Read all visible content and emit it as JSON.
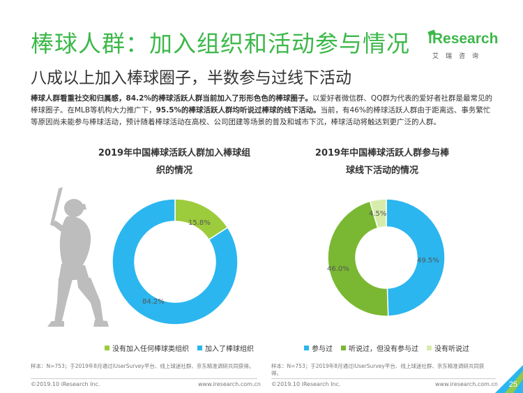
{
  "header": {
    "title": "棒球人群：加入组织和活动参与情况",
    "subtitle": "八成以上加入棒球圈子，半数参与过线下活动"
  },
  "logo": {
    "main_prefix": "i",
    "main_text": "Research",
    "sub_text": "艾瑞咨询",
    "icon": "iresearch-logo-icon"
  },
  "description": {
    "part1_bold": "棒球人群看重社交和归属感，84.2%的棒球活跃人群当前加入了形形色色的棒球圈子。",
    "part2": "以爱好者微信群、QQ群为代表的爱好者社群是最常见的棒球圈子。在MLB等机构大力推广下，",
    "part3_bold": "95.5%的棒球活跃人群均听说过棒球的线下活动。",
    "part4": "当前，有46%的棒球活跃人群由于距离远、事务繁忙等原因尚未能参与棒球活动，预计随着棒球活动在高校、公司团建等场景的普及和城市下沉，棒球活动将触达到更广泛的人群。"
  },
  "decor": {
    "icon": "baseball-player-silhouette-icon"
  },
  "chart_data": [
    {
      "type": "pie",
      "title_line1": "2019年中国棒球活跃人群加入棒球组",
      "title_line2": "织的情况",
      "categories": [
        "没有加入任何棒球类组织",
        "加入了棒球组织"
      ],
      "values": [
        15.8,
        84.2
      ],
      "labels": [
        "15.8%",
        "84.2%"
      ],
      "colors": [
        "#9ccc3c",
        "#2bb6ef"
      ],
      "legend_position": "bottom"
    },
    {
      "type": "pie",
      "title_line1": "2019年中国棒球活跃人群参与棒",
      "title_line2": "球线下活动的情况",
      "categories": [
        "参与过",
        "听说过，但没有参与过",
        "没有听说过"
      ],
      "values": [
        49.5,
        46.0,
        4.5
      ],
      "labels": [
        "49.5%",
        "46.0%",
        "4.5%"
      ],
      "colors": [
        "#2bb6ef",
        "#7ab833",
        "#d7ecab"
      ],
      "legend_position": "bottom"
    }
  ],
  "footnotes": {
    "left": "样本：N=753；于2019年8月通过iUserSurvey平台、线上球迷社群、京东精准调研共同获得。",
    "right": "样本：N=753；于2019年8月通过iUserSurvey平台、线上球迷社群、京东精准调研共同获得。"
  },
  "footer": {
    "copyright_left": "©2019.10 iResearch Inc.",
    "url_left": "www.iresearch.com.cn",
    "copyright_right": "©2019.10 iResearch Inc.",
    "url_right": "www.iresearch.com.cn",
    "page_number": "25"
  },
  "colors": {
    "accent_green": "#3db84a",
    "page_tab_blue": "#2bb6ef",
    "page_tab_green": "#9ccc3c"
  }
}
